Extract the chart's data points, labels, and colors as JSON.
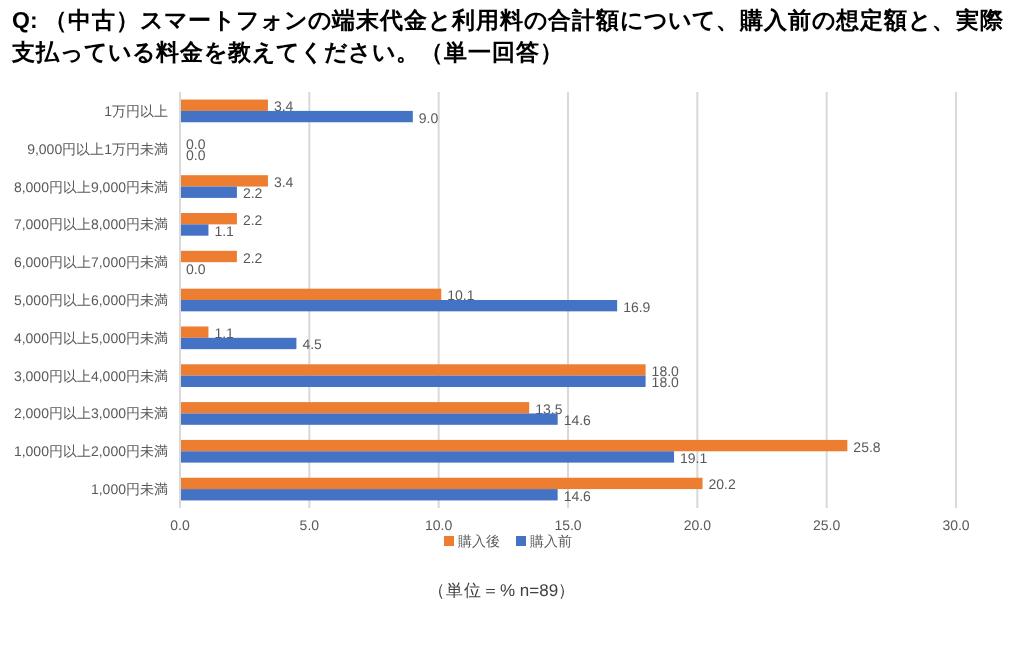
{
  "chart_data": {
    "type": "bar",
    "orientation": "horizontal",
    "title": "Q: （中古）スマートフォンの端末代金と利用料の合計額について、購入前の想定額と、実際支払っている料金を教えてください。（単一回答）",
    "categories": [
      "1万円以上",
      "9,000円以上1万円未満",
      "8,000円以上9,000円未満",
      "7,000円以上8,000円未満",
      "6,000円以上7,000円未満",
      "5,000円以上6,000円未満",
      "4,000円以上5,000円未満",
      "3,000円以上4,000円未満",
      "2,000円以上3,000円未満",
      "1,000円以上2,000円未満",
      "1,000円未満"
    ],
    "series": [
      {
        "name": "購入後",
        "color": "#ed7d31",
        "values": [
          3.4,
          0.0,
          3.4,
          2.2,
          2.2,
          10.1,
          1.1,
          18.0,
          13.5,
          25.8,
          20.2
        ],
        "value_labels": [
          "3.4",
          "0.0",
          "3.4",
          "2.2",
          "2.2",
          "10.1",
          "1.1",
          "18.0",
          "13.5",
          "25.8",
          "20.2"
        ]
      },
      {
        "name": "購入前",
        "color": "#4472c4",
        "values": [
          9.0,
          0.0,
          2.2,
          1.1,
          0.0,
          16.9,
          4.5,
          18.0,
          14.6,
          19.1,
          14.6
        ],
        "value_labels": [
          "9.0",
          "0.0",
          "2.2",
          "1.1",
          "0.0",
          "16.9",
          "4.5",
          "18.0",
          "14.6",
          "19.1",
          "14.6"
        ]
      }
    ],
    "xlim": [
      0,
      30
    ],
    "xticks": [
      {
        "value": 0,
        "label": "0.0"
      },
      {
        "value": 5,
        "label": "5.0"
      },
      {
        "value": 10,
        "label": "10.0"
      },
      {
        "value": 15,
        "label": "15.0"
      },
      {
        "value": 20,
        "label": "20.0"
      },
      {
        "value": 25,
        "label": "25.0"
      },
      {
        "value": 30,
        "label": "30.0"
      }
    ],
    "grid": "x",
    "legend": "bottom",
    "annotations": [
      "（単位＝%  n=89）"
    ]
  }
}
